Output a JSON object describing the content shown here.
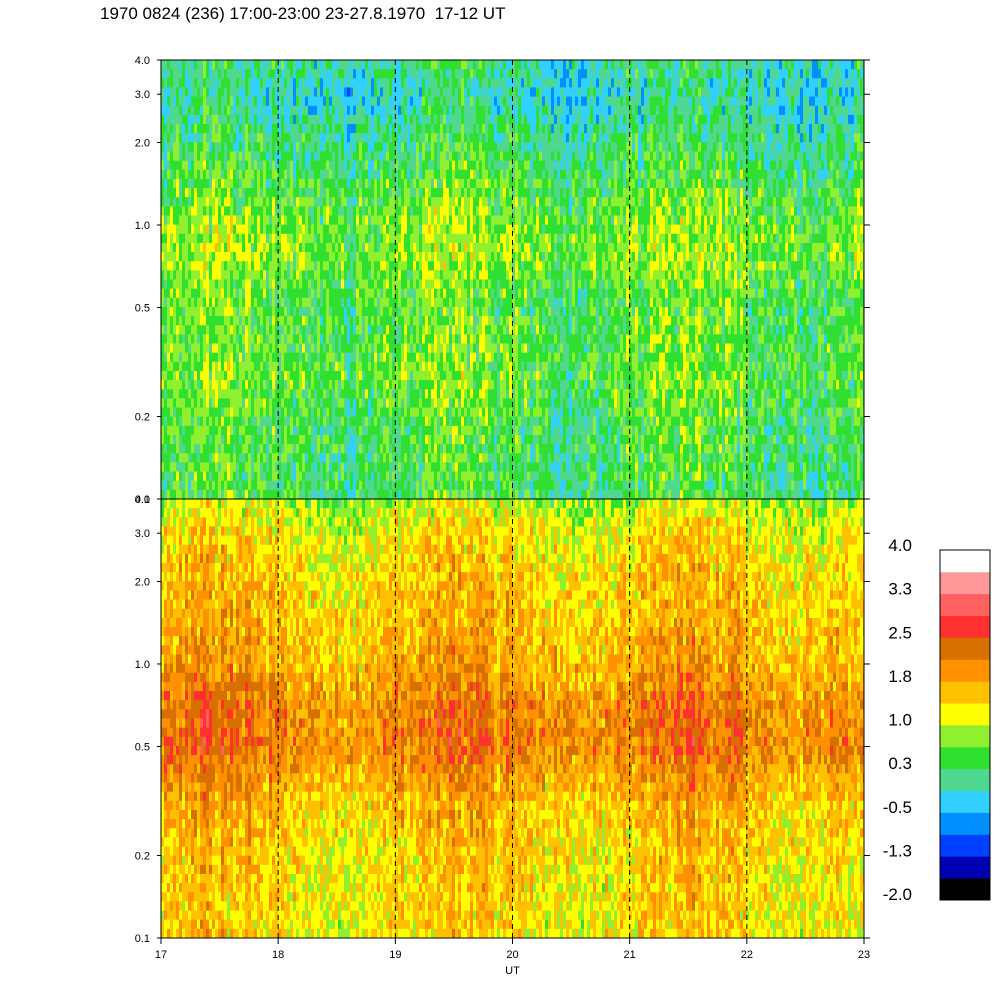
{
  "title": "1970 0824 (236) 17:00-23:00 23-27.8.1970  17-12 UT",
  "chart_data": {
    "type": "heatmap",
    "xlabel": "UT",
    "x_ticks": [
      "17",
      "18",
      "19",
      "20",
      "21",
      "22",
      "23"
    ],
    "xlim": [
      17,
      23
    ],
    "y_scale": "log",
    "panels": [
      {
        "name": "upper",
        "ylim": [
          0.1,
          4.0
        ],
        "y_ticks": [
          {
            "value": 4.0,
            "label": "4.0"
          },
          {
            "value": 3.0,
            "label": "3.0"
          },
          {
            "value": 2.0,
            "label": "2.0"
          },
          {
            "value": 1.0,
            "label": "1.0"
          },
          {
            "value": 0.5,
            "label": "0.5"
          },
          {
            "value": 0.2,
            "label": "0.2"
          },
          {
            "value": 0.1,
            "label": "0.1"
          }
        ],
        "typical_level_profile": [
          {
            "y": 0.1,
            "level": 0.3
          },
          {
            "y": 0.2,
            "level": 0.45
          },
          {
            "y": 0.3,
            "level": 0.6
          },
          {
            "y": 0.5,
            "level": 0.45
          },
          {
            "y": 0.8,
            "level": 0.8
          },
          {
            "y": 1.0,
            "level": 0.7
          },
          {
            "y": 2.0,
            "level": 0.2
          },
          {
            "y": 3.0,
            "level": -0.1
          },
          {
            "y": 4.0,
            "level": 0.1
          }
        ]
      },
      {
        "name": "lower",
        "ylim": [
          0.1,
          4.0
        ],
        "y_ticks": [
          {
            "value": 4.0,
            "label": "4.0"
          },
          {
            "value": 3.0,
            "label": "3.0"
          },
          {
            "value": 2.0,
            "label": "2.0"
          },
          {
            "value": 1.0,
            "label": "1.0"
          },
          {
            "value": 0.5,
            "label": "0.5"
          },
          {
            "value": 0.2,
            "label": "0.2"
          },
          {
            "value": 0.1,
            "label": "0.1"
          }
        ],
        "typical_level_profile": [
          {
            "y": 0.1,
            "level": 1.35
          },
          {
            "y": 0.2,
            "level": 1.45
          },
          {
            "y": 0.3,
            "level": 1.6
          },
          {
            "y": 0.5,
            "level": 2.15
          },
          {
            "y": 0.7,
            "level": 2.1
          },
          {
            "y": 1.0,
            "level": 1.75
          },
          {
            "y": 2.0,
            "level": 1.5
          },
          {
            "y": 3.0,
            "level": 1.3
          },
          {
            "y": 4.0,
            "level": 0.9
          }
        ]
      }
    ],
    "colorbar": {
      "labels": [
        "4.0",
        "3.3",
        "2.5",
        "1.8",
        "1.0",
        "0.3",
        "-0.5",
        "-1.3",
        "-2.0"
      ],
      "min": -2.0,
      "max": 4.0,
      "colors": [
        "#000000",
        "#0000b0",
        "#0040ff",
        "#0090ff",
        "#30d0ff",
        "#50d890",
        "#30e030",
        "#90f030",
        "#ffff00",
        "#ffc000",
        "#ff9000",
        "#d87000",
        "#ff3030",
        "#ff6060",
        "#ff9898",
        "#ffffff"
      ]
    },
    "dashed_verticals": [
      18,
      19,
      20,
      21,
      22
    ]
  }
}
